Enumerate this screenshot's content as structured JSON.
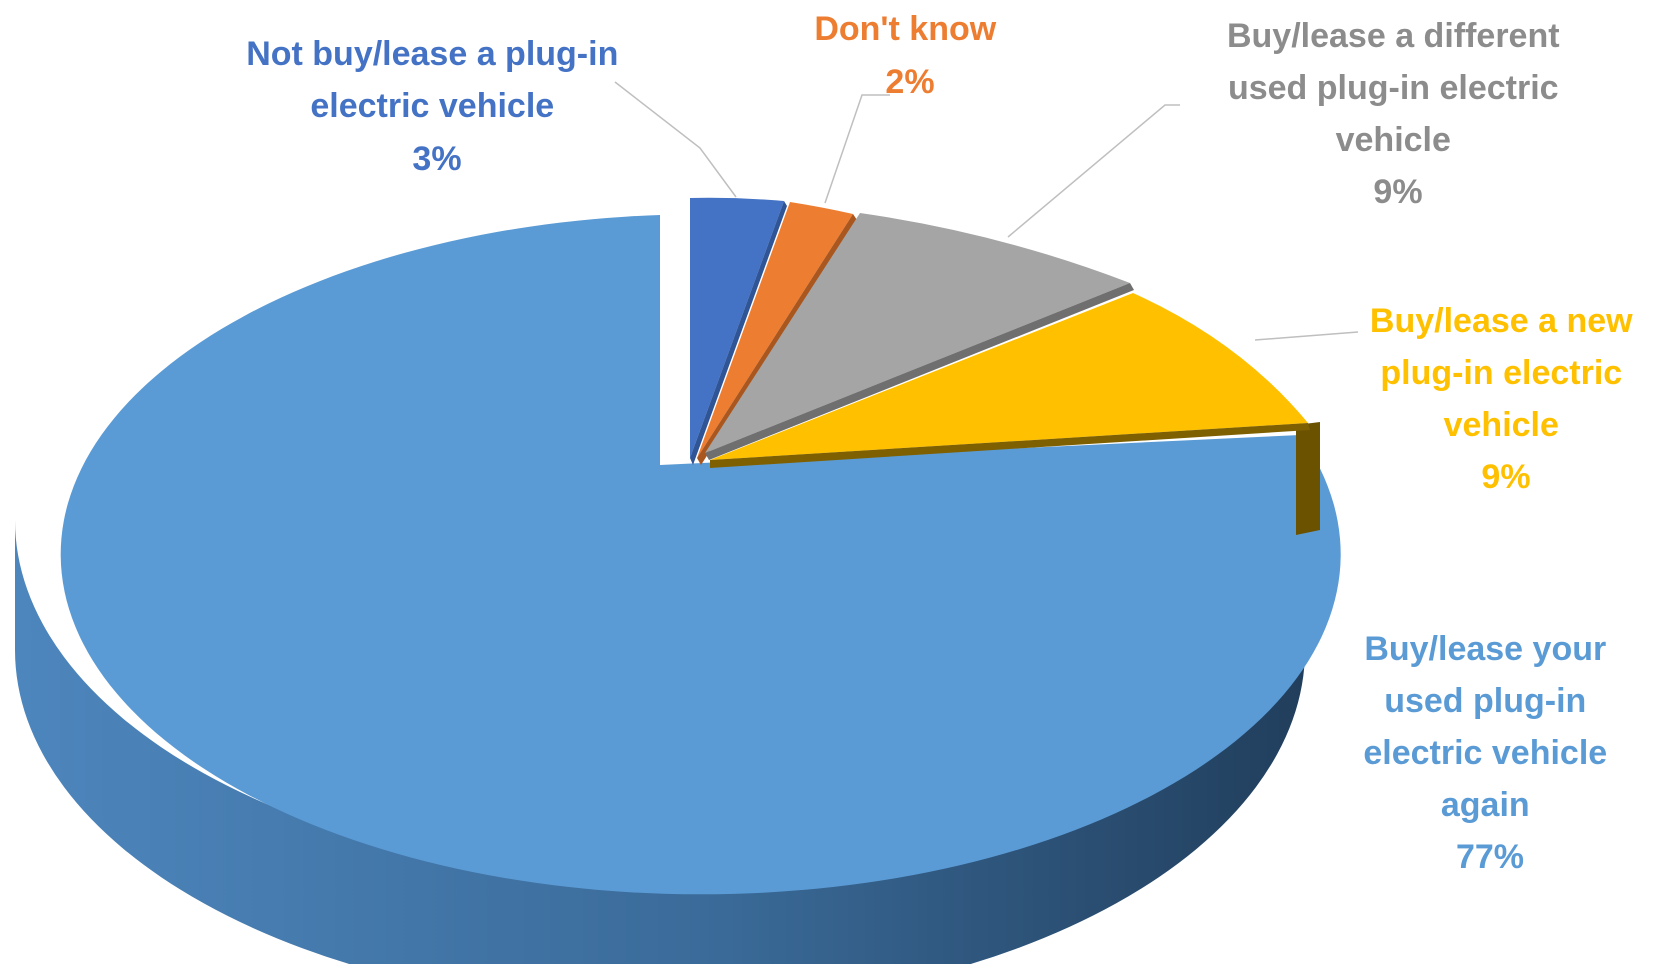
{
  "chart_data": {
    "type": "pie",
    "variant": "3d-exploded",
    "title": "",
    "slices": [
      {
        "label": "Buy/lease your used plug-in electric vehicle again",
        "value": 77,
        "value_label": "77%",
        "color": "#5b9bd5",
        "label_lines": [
          "Buy/lease your",
          "used plug-in",
          "electric vehicle",
          "again"
        ]
      },
      {
        "label": "Not buy/lease a plug-in electric vehicle",
        "value": 3,
        "value_label": "3%",
        "color": "#4472c4",
        "label_lines": [
          "Not buy/lease a plug-in",
          "electric vehicle"
        ]
      },
      {
        "label": "Don't know",
        "value": 2,
        "value_label": "2%",
        "color": "#ed7d31",
        "label_lines": [
          "Don't know"
        ]
      },
      {
        "label": "Buy/lease a different used plug-in electric vehicle",
        "value": 9,
        "value_label": "9%",
        "color": "#a5a5a5",
        "label_lines": [
          "Buy/lease a different",
          "used plug-in electric",
          "vehicle"
        ]
      },
      {
        "label": "Buy/lease a new plug-in electric vehicle",
        "value": 9,
        "value_label": "9%",
        "color": "#ffc000",
        "label_lines": [
          "Buy/lease a new",
          "plug-in electric",
          "vehicle"
        ]
      }
    ]
  }
}
